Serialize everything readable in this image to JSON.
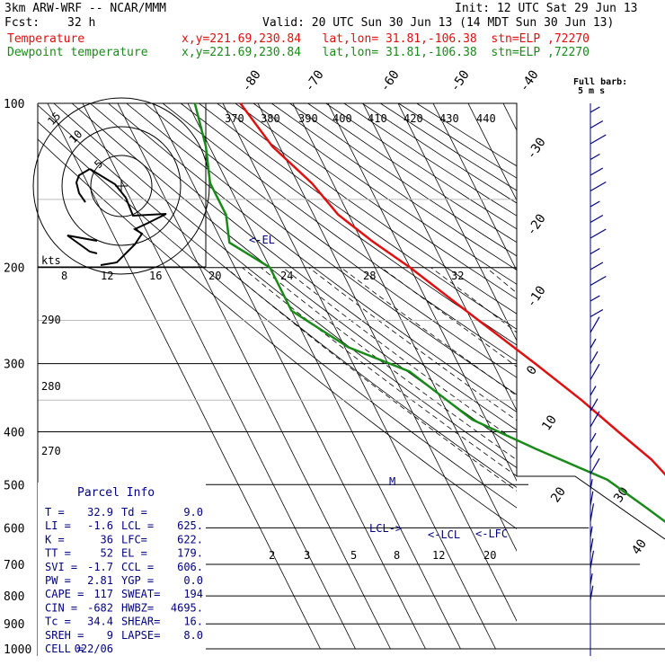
{
  "header": {
    "model": "3km ARW-WRF -- NCAR/MMM",
    "init": "Init: 12 UTC Sat 29 Jun 13",
    "fcst_label": "Fcst:",
    "fcst_value": "32 h",
    "valid": "Valid: 20 UTC Sun 30 Jun 13 (14 MDT Sun 30 Jun 13)",
    "temp_label": "Temperature",
    "temp_info": "x,y=221.69,230.84   lat,lon= 31.81,-106.38  stn=ELP ,72270",
    "dew_label": "Dewpoint temperature",
    "dew_info": "x,y=221.69,230.84   lat,lon= 31.81,-106.38  stn=ELP ,72270",
    "barb_title1": "Full barb:",
    "barb_title2": "5 m s"
  },
  "colors": {
    "temperature": "#e01010",
    "dewpoint": "#1a8a1a",
    "wind": "#000080",
    "grid": "#000000",
    "isotherm": "#000000"
  },
  "parcel_info": {
    "title": "Parcel Info",
    "rows": [
      [
        "T  =",
        "32.9",
        "Td =",
        "9.0"
      ],
      [
        "LI =",
        "-1.6",
        "LCL =",
        "625."
      ],
      [
        "K  =",
        "36",
        "LFC=",
        "622."
      ],
      [
        "TT =",
        "52",
        "EL =",
        "179."
      ],
      [
        "SVI =",
        "-1.7",
        "CCL =",
        "606."
      ],
      [
        "PW =",
        "2.81",
        "YGP =",
        "0.0"
      ],
      [
        "CAPE =",
        "117",
        "SWEAT=",
        "194"
      ],
      [
        "CIN =",
        "-682",
        "HWBZ=",
        "4695."
      ],
      [
        "Tc =",
        "34.4",
        "SHEAR=",
        "16."
      ],
      [
        "SREH =",
        "9",
        "LAPSE=",
        "8.0"
      ],
      [
        "CELL =",
        "022/06",
        "",
        ""
      ]
    ]
  },
  "hodograph": {
    "units": "kts",
    "ring_labels": [
      "5",
      "10",
      "15"
    ],
    "speed_ticks": [
      "8",
      "12",
      "16",
      "20",
      "24",
      "28",
      "32"
    ]
  },
  "chart_data": {
    "type": "line",
    "title": "",
    "ylabel": "",
    "xlabel": "",
    "y_log_scale": true,
    "pressure_levels": [
      100,
      200,
      300,
      400,
      500,
      600,
      700,
      800,
      900,
      1000
    ],
    "isotherm_labels": [
      "-80",
      "-70",
      "-60",
      "-50",
      "-40",
      "-30",
      "-20",
      "-10",
      "0",
      "10",
      "20",
      "30",
      "40"
    ],
    "theta_labels_top": [
      "370",
      "380",
      "390",
      "400",
      "410",
      "420",
      "430",
      "440"
    ],
    "theta_labels_left": [
      "290",
      "280",
      "270"
    ],
    "mixing_ratio_labels": [
      "2",
      "3",
      "5",
      "8",
      "12",
      "20"
    ],
    "annotations": [
      "<-EL",
      "LCL->",
      "<-LCL",
      "<-LFC",
      "M"
    ],
    "series": [
      {
        "name": "Temperature",
        "points": [
          [
            100,
            -75
          ],
          [
            120,
            -72
          ],
          [
            140,
            -66
          ],
          [
            160,
            -63
          ],
          [
            179,
            -57
          ],
          [
            200,
            -50
          ],
          [
            250,
            -38
          ],
          [
            300,
            -28
          ],
          [
            350,
            -20
          ],
          [
            400,
            -14
          ],
          [
            450,
            -8.5
          ],
          [
            500,
            -5.5
          ],
          [
            550,
            -1
          ],
          [
            600,
            3
          ],
          [
            650,
            8
          ],
          [
            700,
            12.5
          ],
          [
            750,
            17
          ],
          [
            800,
            22
          ],
          [
            850,
            28
          ],
          [
            880,
            33
          ]
        ]
      },
      {
        "name": "Dewpoint temperature",
        "points": [
          [
            100,
            -88
          ],
          [
            120,
            -91
          ],
          [
            140,
            -95
          ],
          [
            160,
            -95
          ],
          [
            180,
            -98
          ],
          [
            200,
            -90
          ],
          [
            240,
            -90
          ],
          [
            280,
            -79
          ],
          [
            310,
            -65
          ],
          [
            380,
            -54
          ],
          [
            430,
            -40
          ],
          [
            490,
            -24
          ],
          [
            550,
            -17
          ],
          [
            600,
            -12
          ],
          [
            650,
            -8
          ],
          [
            700,
            -4
          ],
          [
            750,
            -3
          ],
          [
            800,
            -1
          ],
          [
            850,
            1
          ],
          [
            880,
            0
          ]
        ]
      }
    ]
  },
  "wind_profile": {
    "barb_count": 32
  }
}
